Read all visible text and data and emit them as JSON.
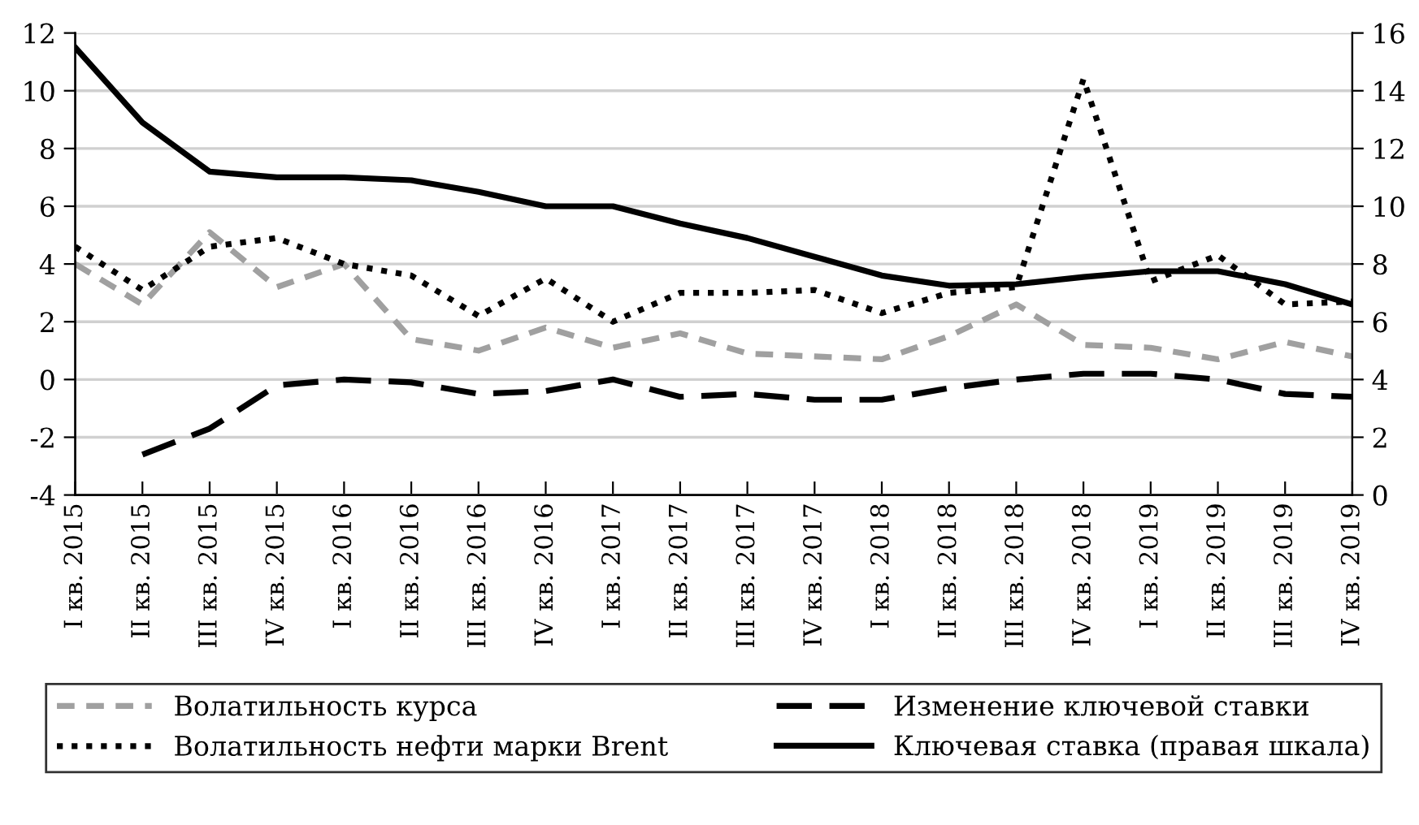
{
  "chart_data": {
    "type": "line",
    "categories": [
      "I кв. 2015",
      "II кв. 2015",
      "III кв. 2015",
      "IV кв. 2015",
      "I кв. 2016",
      "II кв. 2016",
      "III кв. 2016",
      "IV кв. 2016",
      "I кв. 2017",
      "II кв. 2017",
      "III кв. 2017",
      "IV кв. 2017",
      "I кв. 2018",
      "II кв. 2018",
      "III кв. 2018",
      "IV кв. 2018",
      "I кв. 2019",
      "II кв. 2019",
      "III кв. 2019",
      "IV кв. 2019"
    ],
    "series": [
      {
        "name": "Волатильность курса",
        "color": "#a0a0a0",
        "line_style": "dashed",
        "values": [
          4.0,
          2.6,
          5.1,
          3.2,
          4.0,
          1.4,
          1.0,
          1.8,
          1.1,
          1.6,
          0.9,
          0.8,
          0.7,
          1.5,
          2.6,
          1.2,
          1.1,
          0.7,
          1.3,
          0.8
        ]
      },
      {
        "name": "Волатильность нефти марки Brent",
        "color": "#000000",
        "line_style": "dotted",
        "values": [
          4.6,
          3.1,
          4.6,
          4.9,
          4.0,
          3.6,
          2.2,
          3.5,
          2.0,
          3.0,
          3.0,
          3.1,
          2.3,
          3.0,
          3.2,
          10.4,
          3.4,
          4.3,
          2.6,
          2.7
        ]
      },
      {
        "name": "Изменение ключевой ставки",
        "color": "#000000",
        "line_style": "longdash",
        "values": [
          null,
          -2.6,
          -1.7,
          -0.2,
          0.0,
          -0.1,
          -0.5,
          -0.4,
          0.0,
          -0.6,
          -0.5,
          -0.7,
          -0.7,
          -0.3,
          0.0,
          0.2,
          0.2,
          0.0,
          -0.5,
          -0.6
        ]
      },
      {
        "name": "Ключевая ставка (правая шкала)",
        "color": "#000000",
        "line_style": "solid",
        "axis": "y2",
        "values": [
          15.5,
          12.9,
          11.2,
          11.0,
          11.0,
          10.9,
          10.5,
          10.0,
          10.0,
          9.4,
          8.9,
          8.25,
          7.6,
          7.25,
          7.3,
          7.55,
          7.75,
          7.75,
          7.3,
          6.6
        ]
      }
    ],
    "ylim": [
      -4,
      12
    ],
    "yticks": [
      -4,
      -2,
      0,
      2,
      4,
      6,
      8,
      10,
      12
    ],
    "y2lim": [
      0,
      16
    ],
    "y2ticks": [
      0,
      2,
      4,
      6,
      8,
      10,
      12,
      14,
      16
    ],
    "grid": "y",
    "legend": "bottom"
  }
}
